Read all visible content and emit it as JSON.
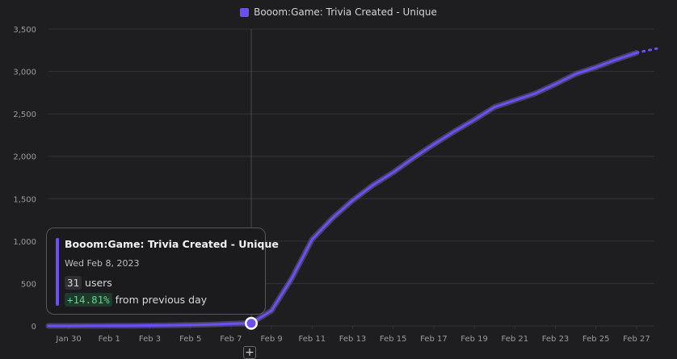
{
  "legend": {
    "label": "Booom:Game: Trivia Created - Unique",
    "color": "#6e4ff5"
  },
  "tooltip": {
    "title": "Booom:Game: Trivia Created - Unique",
    "date": "Wed Feb 8, 2023",
    "value": "31",
    "unit": "users",
    "change": "+14.81%",
    "change_text": "from previous day"
  },
  "colors": {
    "line": "#6e4ff5",
    "glow": "#5a5a92",
    "grid": "#333338",
    "crosshair": "#4a4a50"
  },
  "chart_data": {
    "type": "line",
    "x_tick_labels": [
      "Jan 30",
      "Feb 1",
      "Feb 3",
      "Feb 5",
      "Feb 7",
      "Feb 9",
      "Feb 11",
      "Feb 13",
      "Feb 15",
      "Feb 17",
      "Feb 19",
      "Feb 21",
      "Feb 23",
      "Feb 25",
      "Feb 27"
    ],
    "y_tick_labels": [
      "0",
      "500",
      "1,000",
      "1,500",
      "2,000",
      "2,500",
      "3,000",
      "3,500"
    ],
    "ylim": [
      0,
      3500
    ],
    "x": [
      "2023-01-29",
      "2023-01-30",
      "2023-01-31",
      "2023-02-01",
      "2023-02-02",
      "2023-02-03",
      "2023-02-04",
      "2023-02-05",
      "2023-02-06",
      "2023-02-07",
      "2023-02-08",
      "2023-02-09",
      "2023-02-10",
      "2023-02-11",
      "2023-02-12",
      "2023-02-13",
      "2023-02-14",
      "2023-02-15",
      "2023-02-16",
      "2023-02-17",
      "2023-02-18",
      "2023-02-19",
      "2023-02-20",
      "2023-02-21",
      "2023-02-22",
      "2023-02-23",
      "2023-02-24",
      "2023-02-25",
      "2023-02-26",
      "2023-02-27",
      "2023-02-28"
    ],
    "series": [
      {
        "name": "Booom:Game: Trivia Created - Unique",
        "values": [
          0,
          0,
          1,
          2,
          3,
          5,
          8,
          12,
          17,
          27,
          31,
          180,
          560,
          1020,
          1270,
          1480,
          1660,
          1810,
          1980,
          2140,
          2290,
          2430,
          2580,
          2660,
          2740,
          2850,
          2970,
          3050,
          3140,
          3220,
          3270
        ]
      }
    ],
    "highlight_x": "2023-02-08",
    "grid": true
  }
}
